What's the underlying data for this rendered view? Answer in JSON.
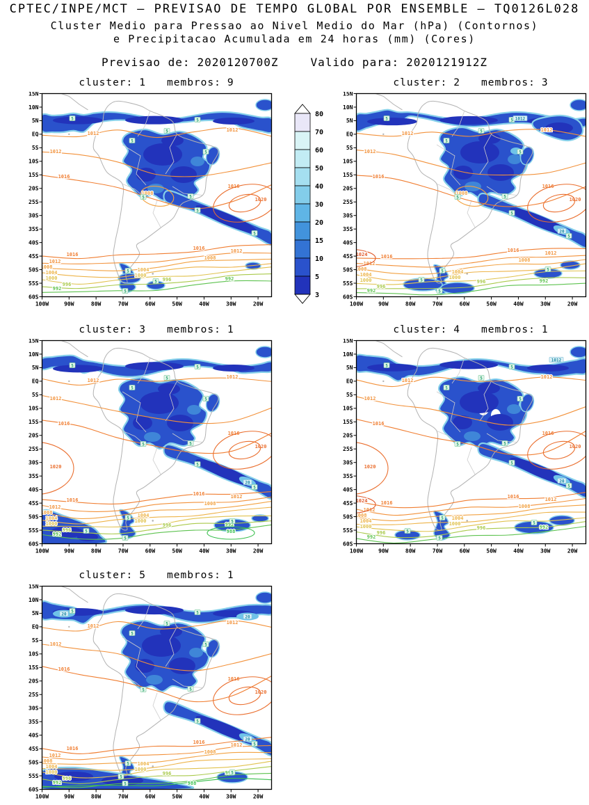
{
  "header": {
    "line1": "CPTEC/INPE/MCT — PREVISAO DE TEMPO GLOBAL POR ENSEMBLE — TQ0126L028",
    "line2": "Cluster Medio para Pressao ao Nivel Medio do Mar (hPa) (Contornos)",
    "line3": "e Precipitacao Acumulada em 24 horas (mm) (Cores)",
    "forecast_label": "Previsao de:",
    "forecast_value": "2020120700Z",
    "valid_label": "Valido para:",
    "valid_value": "2020121912Z"
  },
  "panels": [
    {
      "cluster_label": "cluster:",
      "cluster_value": "1",
      "membros_label": "membros:",
      "membros_value": "9"
    },
    {
      "cluster_label": "cluster:",
      "cluster_value": "2",
      "membros_label": "membros:",
      "membros_value": "3"
    },
    {
      "cluster_label": "cluster:",
      "cluster_value": "3",
      "membros_label": "membros:",
      "membros_value": "1"
    },
    {
      "cluster_label": "cluster:",
      "cluster_value": "4",
      "membros_label": "membros:",
      "membros_value": "1"
    },
    {
      "cluster_label": "cluster:",
      "cluster_value": "5",
      "membros_label": "membros:",
      "membros_value": "1"
    }
  ],
  "axes": {
    "lat_labels": [
      "15N",
      "10N",
      "5N",
      "EQ",
      "5S",
      "10S",
      "15S",
      "20S",
      "25S",
      "30S",
      "35S",
      "40S",
      "45S",
      "50S",
      "55S",
      "60S"
    ],
    "lon_labels": [
      "100W",
      "90W",
      "80W",
      "70W",
      "60W",
      "50W",
      "40W",
      "30W",
      "20W"
    ]
  },
  "colorbar": {
    "tick_labels": [
      "80",
      "70",
      "60",
      "50",
      "40",
      "30",
      "20",
      "15",
      "10",
      "5",
      "3"
    ],
    "band_colors_top_to_bottom": [
      "#e9e7f8",
      "#d9f4f6",
      "#c2ecf4",
      "#a5dff0",
      "#83cdea",
      "#5fb5e6",
      "#4293dc",
      "#3373d4",
      "#2a52cc",
      "#2233bb"
    ],
    "arrow_color": "#ffffff"
  },
  "chart_data": {
    "type": "heatmap",
    "title": "Cluster Medio para Pressao ao Nivel Medio do Mar (hPa) (Contornos) e Precipitacao Acumulada em 24 horas (mm) (Cores)",
    "source": "CPTEC/INPE/MCT — PREVISAO DE TEMPO GLOBAL POR ENSEMBLE — TQ0126L028",
    "init_time": "2020120700Z",
    "valid_time": "2020121912Z",
    "panels": [
      {
        "cluster": 1,
        "membros": 9
      },
      {
        "cluster": 2,
        "membros": 3
      },
      {
        "cluster": 3,
        "membros": 1
      },
      {
        "cluster": 4,
        "membros": 1
      },
      {
        "cluster": 5,
        "membros": 1
      }
    ],
    "precip_shading_levels_mm": [
      3,
      5,
      10,
      15,
      20,
      30,
      40,
      50,
      60,
      70,
      80
    ],
    "precip_shading_colors_low_to_high": [
      "#2233bb",
      "#2a52cc",
      "#3373d4",
      "#4293dc",
      "#5fb5e6",
      "#83cdea",
      "#a5dff0",
      "#c2ecf4",
      "#d9f4f6",
      "#e9e7f8"
    ],
    "precip_contour_labels": [
      5,
      20
    ],
    "pressure_contour_levels_hPa": [
      988,
      992,
      996,
      1000,
      1004,
      1008,
      1012,
      1016,
      1020,
      1024
    ],
    "lat_ticks": [
      "15N",
      "10N",
      "5N",
      "EQ",
      "5S",
      "10S",
      "15S",
      "20S",
      "25S",
      "30S",
      "35S",
      "40S",
      "45S",
      "50S",
      "55S",
      "60S"
    ],
    "lon_ticks": [
      "100W",
      "90W",
      "80W",
      "70W",
      "60W",
      "50W",
      "40W",
      "30W",
      "20W"
    ],
    "domain": {
      "lon": [
        "100W",
        "15W"
      ],
      "lat": [
        "15N",
        "60S"
      ]
    },
    "legend": {
      "units": "mm",
      "position": "between-top-panels"
    }
  }
}
